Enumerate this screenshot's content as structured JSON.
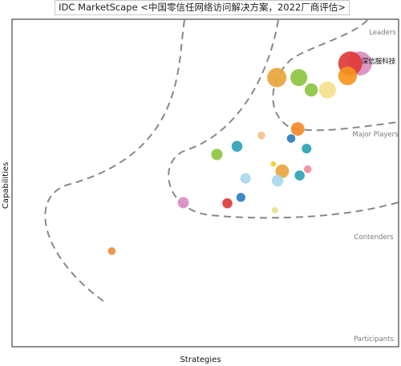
{
  "chart_data": {
    "type": "scatter",
    "title": "IDC MarketScape <中国零信任网络访问解决方案，2022厂商评估>",
    "xlabel": "Strategies",
    "ylabel": "Capabilities",
    "xlim": [
      0,
      100
    ],
    "ylim": [
      0,
      100
    ],
    "grid": false,
    "legend": "none",
    "zones": [
      "Leaders",
      "Major Players",
      "Contenders",
      "Participants"
    ],
    "callout": "深信服科技",
    "points": [
      {
        "x": 90.0,
        "y": 86.5,
        "size": 6.2,
        "color": "#d98fc0"
      },
      {
        "x": 87.5,
        "y": 86.5,
        "size": 6.2,
        "color": "#e03a3a"
      },
      {
        "x": 86.8,
        "y": 82.7,
        "size": 4.8,
        "color": "#f7941d"
      },
      {
        "x": 81.6,
        "y": 78.4,
        "size": 4.4,
        "color": "#f5e08c"
      },
      {
        "x": 77.4,
        "y": 78.4,
        "size": 3.4,
        "color": "#8cc63f"
      },
      {
        "x": 74.2,
        "y": 82.2,
        "size": 4.4,
        "color": "#8cc63f"
      },
      {
        "x": 68.5,
        "y": 82.2,
        "size": 5.0,
        "color": "#e8a53c"
      },
      {
        "x": 73.9,
        "y": 66.5,
        "size": 3.5,
        "color": "#f58a2b"
      },
      {
        "x": 72.2,
        "y": 63.6,
        "size": 2.2,
        "color": "#2b7fbf"
      },
      {
        "x": 76.2,
        "y": 60.5,
        "size": 2.5,
        "color": "#2ba3b5"
      },
      {
        "x": 64.5,
        "y": 64.5,
        "size": 2.0,
        "color": "#f5c28c"
      },
      {
        "x": 58.2,
        "y": 61.2,
        "size": 2.8,
        "color": "#2ba3b5"
      },
      {
        "x": 53.0,
        "y": 58.7,
        "size": 2.9,
        "color": "#8cc63f"
      },
      {
        "x": 69.9,
        "y": 53.6,
        "size": 3.5,
        "color": "#e8a53c"
      },
      {
        "x": 67.6,
        "y": 55.8,
        "size": 1.4,
        "color": "#f5d02b"
      },
      {
        "x": 68.7,
        "y": 50.7,
        "size": 3.0,
        "color": "#a8d8ea"
      },
      {
        "x": 74.4,
        "y": 52.3,
        "size": 2.6,
        "color": "#2ba3b5"
      },
      {
        "x": 76.5,
        "y": 54.2,
        "size": 2.0,
        "color": "#f08c9c"
      },
      {
        "x": 60.4,
        "y": 51.4,
        "size": 2.7,
        "color": "#a8d8ea"
      },
      {
        "x": 59.2,
        "y": 45.6,
        "size": 2.3,
        "color": "#2b7fbf"
      },
      {
        "x": 55.7,
        "y": 43.8,
        "size": 2.6,
        "color": "#e03a3a"
      },
      {
        "x": 68.0,
        "y": 41.7,
        "size": 1.6,
        "color": "#e8e08c"
      },
      {
        "x": 44.3,
        "y": 44.0,
        "size": 2.9,
        "color": "#d98fc0"
      },
      {
        "x": 25.8,
        "y": 29.2,
        "size": 2.0,
        "color": "#f08c3c"
      }
    ]
  }
}
